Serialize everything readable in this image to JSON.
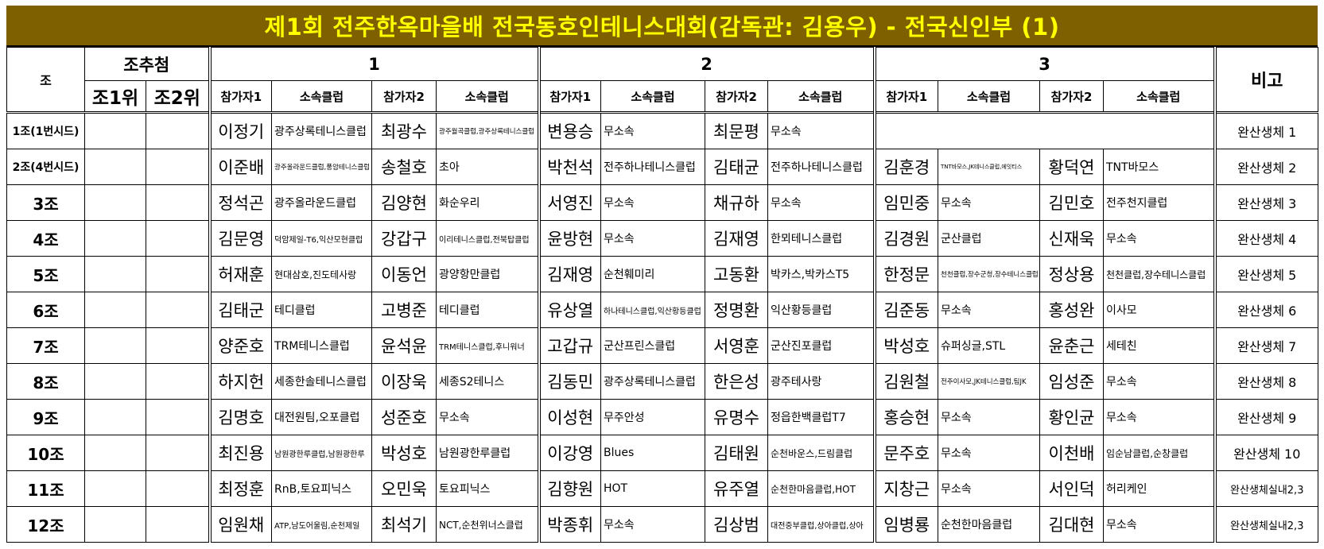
{
  "title": "제1회 전주한옥마을배 전국동호인테니스대회(감독관: 김용우) - 전국신인부 (1)",
  "colors": {
    "title_bg": "#7f6000",
    "title_text": "#ffff00"
  },
  "header": {
    "group_col": "조",
    "draw": "조추첨",
    "rank1": "조1위",
    "rank2": "조2위",
    "slots": [
      "1",
      "2",
      "3"
    ],
    "player1": "참가자1",
    "player2": "참가자2",
    "club": "소속클럽",
    "note": "비고"
  },
  "rows": [
    {
      "group": "1조(1번시드)",
      "slots": [
        [
          "이정기",
          "광주상록테니스클럽",
          "최광수",
          "광주월곡클럽,광주상록테니스클럽"
        ],
        [
          "변용승",
          "무소속",
          "최문평",
          "무소속"
        ],
        null
      ],
      "note": "완산생체 1"
    },
    {
      "group": "2조(4번시드)",
      "slots": [
        [
          "이준배",
          "광주올라운드클럽,풍암테니스클럽",
          "송철호",
          "초아"
        ],
        [
          "박천석",
          "전주하나테니스클럽",
          "김태균",
          "전주하나테니스클럽"
        ],
        [
          "김훈경",
          "TNT바모스,JK테니스클럽,에잇티스",
          "황덕연",
          "TNT바모스"
        ]
      ],
      "note": "완산생체 2"
    },
    {
      "group": "3조",
      "slots": [
        [
          "정석곤",
          "광주올라운드클럽",
          "김양현",
          "화순우리"
        ],
        [
          "서영진",
          "무소속",
          "채규하",
          "무소속"
        ],
        [
          "임민중",
          "무소속",
          "김민호",
          "전주천지클럽"
        ]
      ],
      "note": "완산생체 3"
    },
    {
      "group": "4조",
      "slots": [
        [
          "김문영",
          "덕암제일-T6,익산모현클럽",
          "강갑구",
          "이리테니스클럽,전북탑클럽"
        ],
        [
          "윤방현",
          "무소속",
          "김재영",
          "한뫼테니스클럽"
        ],
        [
          "김경원",
          "군산클럽",
          "신재욱",
          "무소속"
        ]
      ],
      "note": "완산생체 4"
    },
    {
      "group": "5조",
      "slots": [
        [
          "허재훈",
          "현대삼호,진도테사랑",
          "이동언",
          "광양항만클럽"
        ],
        [
          "김재영",
          "순천훼미리",
          "고동환",
          "박카스,박카스T5"
        ],
        [
          "한정문",
          "천천클럽,장수군청,장수테니스클럽",
          "정상용",
          "천천클럽,장수테니스클럽"
        ]
      ],
      "note": "완산생체 5"
    },
    {
      "group": "6조",
      "slots": [
        [
          "김태군",
          "테디클럽",
          "고병준",
          "테디클럽"
        ],
        [
          "유상열",
          "하나테니스클럽,익산황등클럽",
          "정명환",
          "익산황등클럽"
        ],
        [
          "김준동",
          "무소속",
          "홍성완",
          "이사모"
        ]
      ],
      "note": "완산생체 6"
    },
    {
      "group": "7조",
      "slots": [
        [
          "양준호",
          "TRM테니스클럽",
          "윤석윤",
          "TRM테니스클럽,후니워너"
        ],
        [
          "고갑규",
          "군산프린스클럽",
          "서영훈",
          "군산진포클럽"
        ],
        [
          "박성호",
          "슈퍼싱글,STL",
          "윤춘근",
          "세테친"
        ]
      ],
      "note": "완산생체 7"
    },
    {
      "group": "8조",
      "slots": [
        [
          "하지헌",
          "세종한솔테니스클럽",
          "이장욱",
          "세종S2테니스"
        ],
        [
          "김동민",
          "광주상록테니스클럽",
          "한은성",
          "광주테사랑"
        ],
        [
          "김원철",
          "전주이사모,JK테니스클럽,팀JK",
          "임성준",
          "무소속"
        ]
      ],
      "note": "완산생체 8"
    },
    {
      "group": "9조",
      "slots": [
        [
          "김명호",
          "대전원팀,오포클럽",
          "성준호",
          "무소속"
        ],
        [
          "이성현",
          "무주안성",
          "유명수",
          "정읍한백클럽T7"
        ],
        [
          "홍승현",
          "무소속",
          "황인균",
          "무소속"
        ]
      ],
      "note": "완산생체 9"
    },
    {
      "group": "10조",
      "slots": [
        [
          "최진용",
          "남원광한루클럽,남원광한루",
          "박성호",
          "남원광한루클럽"
        ],
        [
          "이강영",
          "Blues",
          "김태원",
          "순천바운스,드림클럽"
        ],
        [
          "문주호",
          "무소속",
          "이천배",
          "임순남클럽,순창클럽"
        ]
      ],
      "note": "완산생체 10"
    },
    {
      "group": "11조",
      "slots": [
        [
          "최정훈",
          "RnB,토요피닉스",
          "오민욱",
          "토요피닉스"
        ],
        [
          "김향원",
          "HOT",
          "유주열",
          "순천한마음클럽,HOT"
        ],
        [
          "지창근",
          "무소속",
          "서인덕",
          "허리케인"
        ]
      ],
      "note": "완산생체실내2,3"
    },
    {
      "group": "12조",
      "slots": [
        [
          "임원채",
          "ATP,남도어울림,순천제일",
          "최석기",
          "NCT,순천위너스클럽"
        ],
        [
          "박종휘",
          "무소속",
          "김상범",
          "대전중부클럽,상아클럽,상아"
        ],
        [
          "임병룡",
          "순천한마음클럽",
          "김대현",
          "무소속"
        ]
      ],
      "note": "완산생체실내2,3"
    }
  ]
}
